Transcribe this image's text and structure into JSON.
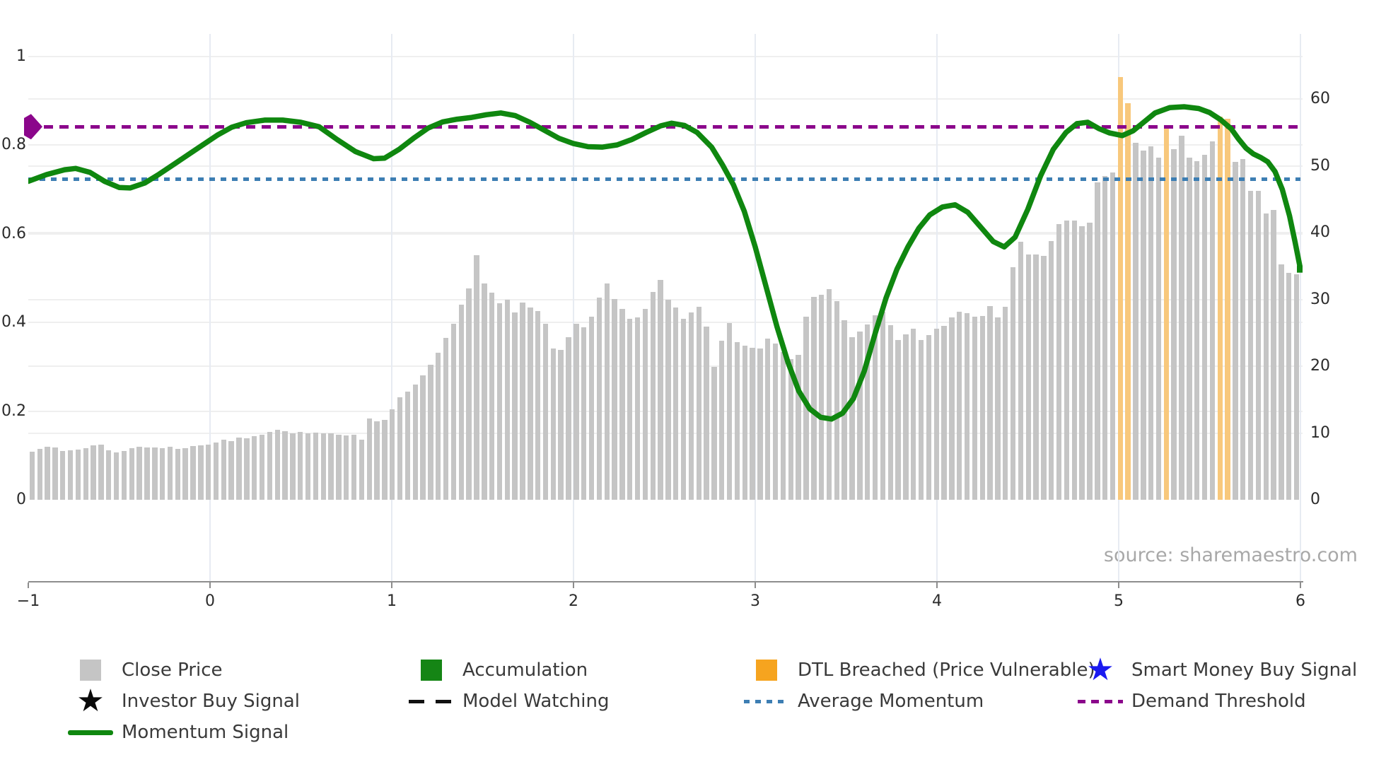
{
  "source_text": "source: sharemaestro.com",
  "colors": {
    "close_price_bar": "#c5c5c5",
    "dtl_bar": "#f8c87c",
    "dtl_legend": "#f6a41f",
    "momentum_line": "#0f870f",
    "accumulation": "#158515",
    "average_momentum": "#3d7eb3",
    "demand_threshold": "#8b068b",
    "investor_star": "#0a0a0a",
    "smart_money_star": "#1a1af0",
    "model_watching": "#111111",
    "axis_line": "#8d8d8d",
    "tick_text": "#2b2b2b",
    "legend_text": "#3a3a3a",
    "source_text_color": "#a8a8a8"
  },
  "axes": {
    "x_ticks": [
      {
        "v": -1,
        "label": "−1"
      },
      {
        "v": 0,
        "label": "0"
      },
      {
        "v": 1,
        "label": "1"
      },
      {
        "v": 2,
        "label": "2"
      },
      {
        "v": 3,
        "label": "3"
      },
      {
        "v": 4,
        "label": "4"
      },
      {
        "v": 5,
        "label": "5"
      },
      {
        "v": 6,
        "label": "6"
      }
    ],
    "y_left_ticks": [
      {
        "v": 0,
        "label": "0"
      },
      {
        "v": 0.2,
        "label": "0.2"
      },
      {
        "v": 0.4,
        "label": "0.4"
      },
      {
        "v": 0.6,
        "label": "0.6"
      },
      {
        "v": 0.8,
        "label": "0.8"
      },
      {
        "v": 1,
        "label": "1"
      }
    ],
    "y_right_ticks": [
      {
        "v": 0,
        "label": "0"
      },
      {
        "v": 10,
        "label": "10"
      },
      {
        "v": 20,
        "label": "20"
      },
      {
        "v": 30,
        "label": "30"
      },
      {
        "v": 40,
        "label": "40"
      },
      {
        "v": 50,
        "label": "50"
      },
      {
        "v": 60,
        "label": "60"
      }
    ]
  },
  "chart_data": {
    "type": "bar",
    "title": "",
    "xlabel": "",
    "ylabel_left": "",
    "ylabel_right": "",
    "x_range": [
      -1,
      6
    ],
    "y_left_range": [
      0,
      1
    ],
    "y_right_range": [
      0,
      65
    ],
    "grid": true,
    "series": [
      {
        "name": "Close Price",
        "type": "bar",
        "axis": "right",
        "values": [
          7.2,
          7.6,
          7.9,
          7.8,
          7.3,
          7.4,
          7.5,
          7.7,
          8.2,
          8.3,
          7.4,
          7.1,
          7.3,
          7.7,
          7.9,
          7.8,
          7.8,
          7.7,
          7.9,
          7.6,
          7.7,
          8.0,
          8.1,
          8.3,
          8.6,
          9.0,
          8.8,
          9.3,
          9.2,
          9.5,
          9.7,
          10.2,
          10.5,
          10.3,
          10.0,
          10.2,
          10.0,
          10.1,
          9.9,
          10.0,
          9.7,
          9.6,
          9.7,
          9.0,
          12.2,
          11.7,
          12.0,
          13.5,
          15.3,
          16.2,
          17.3,
          18.6,
          20.2,
          22.0,
          24.2,
          26.4,
          29.2,
          31.6,
          36.6,
          32.4,
          31.0,
          29.4,
          29.9,
          28.0,
          29.5,
          28.8,
          28.3,
          26.3,
          22.6,
          22.4,
          24.3,
          26.3,
          25.8,
          27.4,
          30.3,
          32.4,
          30.1,
          28.6,
          27.1,
          27.3,
          28.6,
          31.1,
          32.9,
          30.0,
          28.8,
          27.1,
          28.0,
          28.9,
          25.9,
          19.9,
          23.8,
          26.5,
          23.6,
          23.1,
          22.8,
          22.6,
          24.1,
          23.4,
          22.1,
          21.1,
          21.7,
          27.4,
          30.4,
          30.7,
          31.5,
          29.7,
          26.9,
          24.3,
          25.2,
          26.2,
          27.6,
          28.1,
          26.1,
          23.9,
          24.8,
          25.6,
          23.9,
          24.7,
          25.6,
          26.0,
          27.3,
          28.1,
          27.9,
          27.4,
          27.5,
          29.0,
          27.3,
          28.9,
          34.8,
          38.6,
          36.7,
          36.7,
          36.5,
          38.7,
          41.3,
          41.8,
          41.8,
          40.9,
          41.5,
          47.5,
          48.5,
          49.0,
          63.3,
          59.4,
          53.4,
          52.3,
          52.9,
          51.2,
          56.1,
          52.5,
          54.5,
          51.2,
          50.7,
          51.6,
          53.6,
          57.4,
          57.0,
          50.6,
          51.0,
          46.2,
          46.2,
          42.9,
          43.4,
          35.2,
          34.0,
          33.8
        ]
      },
      {
        "name": "DTL Breached (Price Vulnerable)",
        "type": "bar-highlight",
        "axis": "right",
        "highlight_indices": [
          142,
          143,
          148,
          155,
          156
        ]
      },
      {
        "name": "Momentum Signal",
        "type": "line",
        "axis": "left",
        "end_marker": "square",
        "points": [
          [
            -1.0,
            0.718
          ],
          [
            -0.9,
            0.733
          ],
          [
            -0.8,
            0.744
          ],
          [
            -0.74,
            0.747
          ],
          [
            -0.66,
            0.738
          ],
          [
            -0.58,
            0.718
          ],
          [
            -0.5,
            0.704
          ],
          [
            -0.44,
            0.703
          ],
          [
            -0.36,
            0.714
          ],
          [
            -0.28,
            0.734
          ],
          [
            -0.2,
            0.756
          ],
          [
            -0.12,
            0.778
          ],
          [
            -0.04,
            0.8
          ],
          [
            0.04,
            0.822
          ],
          [
            0.12,
            0.84
          ],
          [
            0.2,
            0.85
          ],
          [
            0.3,
            0.856
          ],
          [
            0.4,
            0.856
          ],
          [
            0.5,
            0.851
          ],
          [
            0.6,
            0.841
          ],
          [
            0.7,
            0.812
          ],
          [
            0.8,
            0.785
          ],
          [
            0.9,
            0.769
          ],
          [
            0.96,
            0.77
          ],
          [
            1.04,
            0.79
          ],
          [
            1.12,
            0.815
          ],
          [
            1.2,
            0.838
          ],
          [
            1.28,
            0.852
          ],
          [
            1.36,
            0.858
          ],
          [
            1.44,
            0.862
          ],
          [
            1.52,
            0.868
          ],
          [
            1.6,
            0.872
          ],
          [
            1.68,
            0.866
          ],
          [
            1.76,
            0.851
          ],
          [
            1.84,
            0.833
          ],
          [
            1.92,
            0.815
          ],
          [
            2.0,
            0.803
          ],
          [
            2.08,
            0.796
          ],
          [
            2.16,
            0.795
          ],
          [
            2.24,
            0.8
          ],
          [
            2.32,
            0.812
          ],
          [
            2.4,
            0.828
          ],
          [
            2.48,
            0.843
          ],
          [
            2.54,
            0.849
          ],
          [
            2.61,
            0.844
          ],
          [
            2.68,
            0.828
          ],
          [
            2.76,
            0.795
          ],
          [
            2.82,
            0.755
          ],
          [
            2.88,
            0.71
          ],
          [
            2.94,
            0.65
          ],
          [
            3.0,
            0.57
          ],
          [
            3.06,
            0.48
          ],
          [
            3.12,
            0.39
          ],
          [
            3.18,
            0.31
          ],
          [
            3.24,
            0.245
          ],
          [
            3.3,
            0.205
          ],
          [
            3.36,
            0.186
          ],
          [
            3.42,
            0.182
          ],
          [
            3.48,
            0.195
          ],
          [
            3.54,
            0.228
          ],
          [
            3.6,
            0.29
          ],
          [
            3.66,
            0.375
          ],
          [
            3.72,
            0.455
          ],
          [
            3.78,
            0.52
          ],
          [
            3.84,
            0.57
          ],
          [
            3.9,
            0.612
          ],
          [
            3.96,
            0.642
          ],
          [
            4.03,
            0.66
          ],
          [
            4.1,
            0.665
          ],
          [
            4.17,
            0.648
          ],
          [
            4.24,
            0.615
          ],
          [
            4.31,
            0.582
          ],
          [
            4.37,
            0.57
          ],
          [
            4.43,
            0.592
          ],
          [
            4.5,
            0.655
          ],
          [
            4.57,
            0.73
          ],
          [
            4.64,
            0.79
          ],
          [
            4.71,
            0.828
          ],
          [
            4.77,
            0.848
          ],
          [
            4.83,
            0.851
          ],
          [
            4.89,
            0.837
          ],
          [
            4.95,
            0.827
          ],
          [
            5.02,
            0.821
          ],
          [
            5.08,
            0.832
          ],
          [
            5.14,
            0.852
          ],
          [
            5.2,
            0.872
          ],
          [
            5.28,
            0.884
          ],
          [
            5.36,
            0.886
          ],
          [
            5.44,
            0.882
          ],
          [
            5.5,
            0.873
          ],
          [
            5.56,
            0.857
          ],
          [
            5.62,
            0.836
          ],
          [
            5.66,
            0.813
          ],
          [
            5.7,
            0.793
          ],
          [
            5.74,
            0.78
          ],
          [
            5.78,
            0.772
          ],
          [
            5.82,
            0.762
          ],
          [
            5.86,
            0.74
          ],
          [
            5.9,
            0.7
          ],
          [
            5.94,
            0.64
          ],
          [
            5.97,
            0.582
          ],
          [
            6.0,
            0.52
          ]
        ]
      },
      {
        "name": "Average Momentum",
        "type": "hline",
        "axis": "left",
        "value": 0.722
      },
      {
        "name": "Demand Threshold",
        "type": "hline",
        "axis": "left",
        "value": 0.841,
        "start_marker": "diamond"
      },
      {
        "name": "Investor Buy Signal",
        "type": "scatter",
        "points": []
      },
      {
        "name": "Smart Money Buy Signal",
        "type": "scatter",
        "points": []
      },
      {
        "name": "Accumulation",
        "type": "region",
        "points": []
      },
      {
        "name": "Model Watching",
        "type": "line",
        "points": []
      }
    ]
  },
  "legend": {
    "items": [
      {
        "col": 0,
        "row": 0,
        "swatch": "square",
        "color_key": "close_price_bar",
        "label": "Close Price"
      },
      {
        "col": 0,
        "row": 1,
        "swatch": "star",
        "color_key": "investor_star",
        "label": "Investor Buy Signal"
      },
      {
        "col": 0,
        "row": 2,
        "swatch": "line",
        "color_key": "momentum_line",
        "label": "Momentum Signal"
      },
      {
        "col": 1,
        "row": 0,
        "swatch": "square",
        "color_key": "accumulation",
        "label": "Accumulation"
      },
      {
        "col": 1,
        "row": 1,
        "swatch": "dash",
        "color_key": "model_watching",
        "label": "Model Watching"
      },
      {
        "col": 2,
        "row": 0,
        "swatch": "square",
        "color_key": "dtl_legend",
        "label": "DTL Breached (Price Vulnerable)"
      },
      {
        "col": 2,
        "row": 1,
        "swatch": "dot-blue",
        "color_key": "average_momentum",
        "label": "Average Momentum"
      },
      {
        "col": 3,
        "row": 0,
        "swatch": "star",
        "color_key": "smart_money_star",
        "label": "Smart Money Buy Signal"
      },
      {
        "col": 3,
        "row": 1,
        "swatch": "dot-purple",
        "color_key": "demand_threshold",
        "label": "Demand Threshold"
      }
    ]
  }
}
